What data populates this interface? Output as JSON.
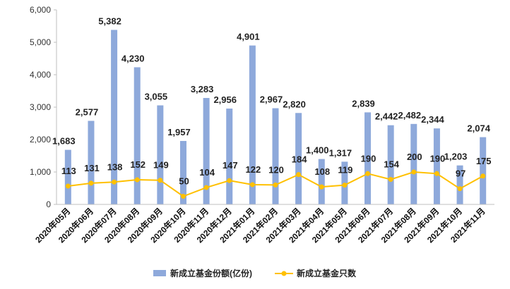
{
  "chart_data": {
    "type": "bar",
    "categories": [
      "2020年05月",
      "2020年06月",
      "2020年07月",
      "2020年08月",
      "2020年09月",
      "2020年10月",
      "2020年11月",
      "2020年12月",
      "2021年01月",
      "2021年02月",
      "2021年03月",
      "2021年04月",
      "2021年05月",
      "2021年06月",
      "2021年07月",
      "2021年08月",
      "2021年09月",
      "2021年10月",
      "2021年11月"
    ],
    "series": [
      {
        "name": "新成立基金份额(亿份)",
        "type": "bar",
        "color": "#8EA9DB",
        "values": [
          1683,
          2577,
          5382,
          4230,
          3055,
          1957,
          3283,
          2956,
          4901,
          2967,
          2820,
          1400,
          1317,
          2839,
          2442,
          2482,
          2344,
          1203,
          2074
        ],
        "labels": [
          "1,683",
          "2,577",
          "5,382",
          "4,230",
          "3,055",
          "1,957",
          "3,283",
          "2,956",
          "4,901",
          "2,967",
          "2,820",
          "1,400",
          "1,317",
          "2,839",
          "2,442",
          "2,482",
          "2,344",
          "1,203",
          "2,074"
        ]
      },
      {
        "name": "新成立基金只数",
        "type": "line",
        "color": "#FFC000",
        "values": [
          113,
          131,
          138,
          152,
          149,
          50,
          104,
          147,
          122,
          120,
          184,
          108,
          119,
          190,
          154,
          200,
          190,
          97,
          175
        ],
        "labels": [
          "113",
          "131",
          "138",
          "152",
          "149",
          "50",
          "104",
          "147",
          "122",
          "120",
          "184",
          "108",
          "119",
          "190",
          "154",
          "200",
          "190",
          "97",
          "175"
        ],
        "display_scale": 5
      }
    ],
    "y_ticks": [
      "0",
      "1,000",
      "2,000",
      "3,000",
      "4,000",
      "5,000",
      "6,000"
    ],
    "ylim": [
      0,
      6000
    ],
    "grid": false,
    "legend_position": "bottom"
  }
}
